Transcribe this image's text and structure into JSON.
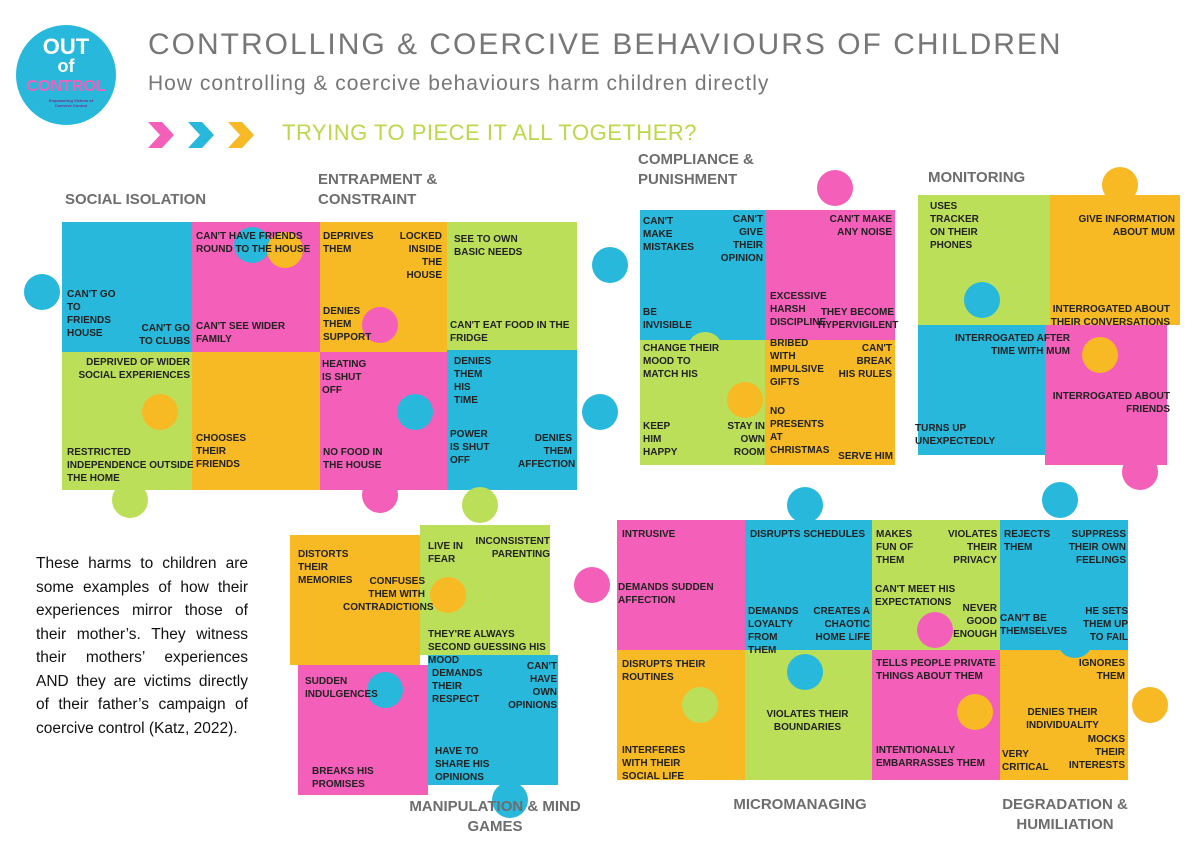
{
  "logo": {
    "line1": "OUT",
    "line2": "of",
    "line3": "CONTROL",
    "tagline": "Empowering Victims of Coercive Control"
  },
  "title": "CONTROLLING & COERCIVE BEHAVIOURS OF CHILDREN",
  "subtitle": "How controlling & coercive behaviours harm children directly",
  "tagline": "TRYING TO PIECE IT ALL TOGETHER?",
  "intro": "These harms to children are some examples of how their experiences mirror those of their mother’s. They witness their mothers’ experiences AND they are victims directly of their father’s campaign of coercive control (Katz, 2022).",
  "groups": [
    {
      "label": "SOCIAL ISOLATION",
      "items": [
        "CAN'T GO TO FRIENDS HOUSE",
        "CAN'T GO TO CLUBS",
        "CAN'T HAVE FRIENDS ROUND TO THE HOUSE",
        "CAN'T SEE WIDER FAMILY",
        "DEPRIVED OF WIDER SOCIAL EXPERIENCES",
        "RESTRICTED INDEPENDENCE OUTSIDE THE HOME",
        "CHOOSES THEIR FRIENDS"
      ]
    },
    {
      "label": "ENTRAPMENT & CONSTRAINT",
      "items": [
        "DEPRIVES THEM",
        "LOCKED INSIDE THE HOUSE",
        "SEE TO OWN BASIC NEEDS",
        "DENIES THEM SUPPORT",
        "CAN'T EAT FOOD IN THE FRIDGE",
        "HEATING IS SHUT OFF",
        "NO FOOD IN THE HOUSE",
        "DENIES THEM HIS TIME",
        "POWER IS SHUT OFF",
        "DENIES THEM AFFECTION"
      ]
    },
    {
      "label": "COMPLIANCE & PUNISHMENT",
      "items": [
        "CAN'T MAKE MISTAKES",
        "CAN'T GIVE THEIR OPINION",
        "CAN'T MAKE ANY NOISE",
        "BE INVISIBLE",
        "EXCESSIVE HARSH DISCIPLINE",
        "THEY BECOME HYPERVIGILENT",
        "CHANGE THEIR MOOD TO MATCH HIS",
        "BRIBED WITH IMPULSIVE GIFTS",
        "CAN'T BREAK HIS RULES",
        "KEEP HIM HAPPY",
        "STAY IN OWN ROOM",
        "NO PRESENTS AT CHRISTMAS",
        "SERVE HIM"
      ]
    },
    {
      "label": "MONITORING",
      "items": [
        "USES TRACKER ON THEIR PHONES",
        "GIVE INFORMATION ABOUT MUM",
        "INTERROGATED ABOUT THEIR CONVERSATIONS",
        "INTERROGATED AFTER TIME WITH MUM",
        "INTERROGATED ABOUT FRIENDS",
        "TURNS UP UNEXPECTEDLY"
      ]
    },
    {
      "label": "MANIPULATION & MIND GAMES",
      "items": [
        "DISTORTS THEIR MEMORIES",
        "CONFUSES THEM WITH CONTRADICTIONS",
        "LIVE IN FEAR",
        "INCONSISTENT PARENTING",
        "THEY'RE ALWAYS SECOND GUESSING HIS MOOD",
        "SUDDEN INDULGENCES",
        "DEMANDS THEIR RESPECT",
        "CAN'T HAVE OWN OPINIONS",
        "HAVE TO SHARE HIS OPINIONS",
        "BREAKS HIS PROMISES"
      ]
    },
    {
      "label": "MICROMANAGING",
      "items": [
        "INTRUSIVE",
        "DISRUPTS SCHEDULES",
        "DEMANDS SUDDEN AFFECTION",
        "DEMANDS LOYALTY FROM THEM",
        "CREATES A CHAOTIC HOME LIFE",
        "DISRUPTS THEIR ROUTINES",
        "VIOLATES THEIR BOUNDARIES",
        "INTERFERES WITH THEIR SOCIAL LIFE"
      ]
    },
    {
      "label": "DEGRADATION & HUMILIATION",
      "items": [
        "MAKES FUN OF THEM",
        "VIOLATES THEIR PRIVACY",
        "REJECTS THEM",
        "SUPPRESS THEIR OWN FEELINGS",
        "CAN'T MEET HIS EXPECTATIONS",
        "NEVER GOOD ENOUGH",
        "CAN'T BE THEMSELVES",
        "HE SETS THEM UP TO FAIL",
        "TELLS PEOPLE PRIVATE THINGS ABOUT THEM",
        "IGNORES THEM",
        "DENIES THEIR INDIVIDUALITY",
        "INTENTIONALLY EMBARRASSES THEM",
        "VERY CRITICAL",
        "MOCKS THEIR INTERESTS"
      ]
    }
  ]
}
